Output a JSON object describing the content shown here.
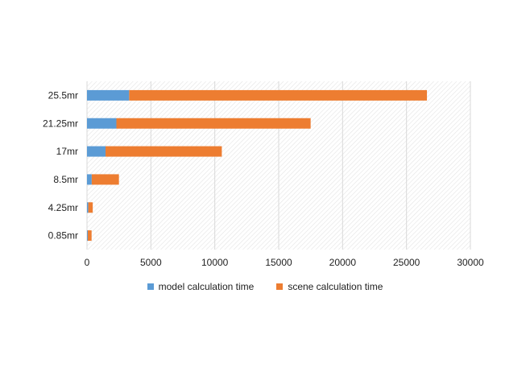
{
  "chart_data": {
    "type": "bar",
    "orientation": "horizontal",
    "stacked": true,
    "title": "",
    "xlabel": "",
    "ylabel": "",
    "categories": [
      "25.5mr",
      "21.25mr",
      "17mr",
      "8.5mr",
      "4.25mr",
      "0.85mr"
    ],
    "series": [
      {
        "name": "model calculation time",
        "color": "#5b9bd5",
        "values": [
          3300,
          2300,
          1450,
          370,
          100,
          60
        ]
      },
      {
        "name": "scene calculation time",
        "color": "#ed7d31",
        "values": [
          23300,
          15200,
          9100,
          2130,
          350,
          300
        ]
      }
    ],
    "xlim": [
      0,
      30000
    ],
    "x_ticks": [
      "0",
      "5000",
      "10000",
      "15000",
      "20000",
      "25000",
      "30000"
    ],
    "grid": true,
    "legend_position": "bottom"
  }
}
